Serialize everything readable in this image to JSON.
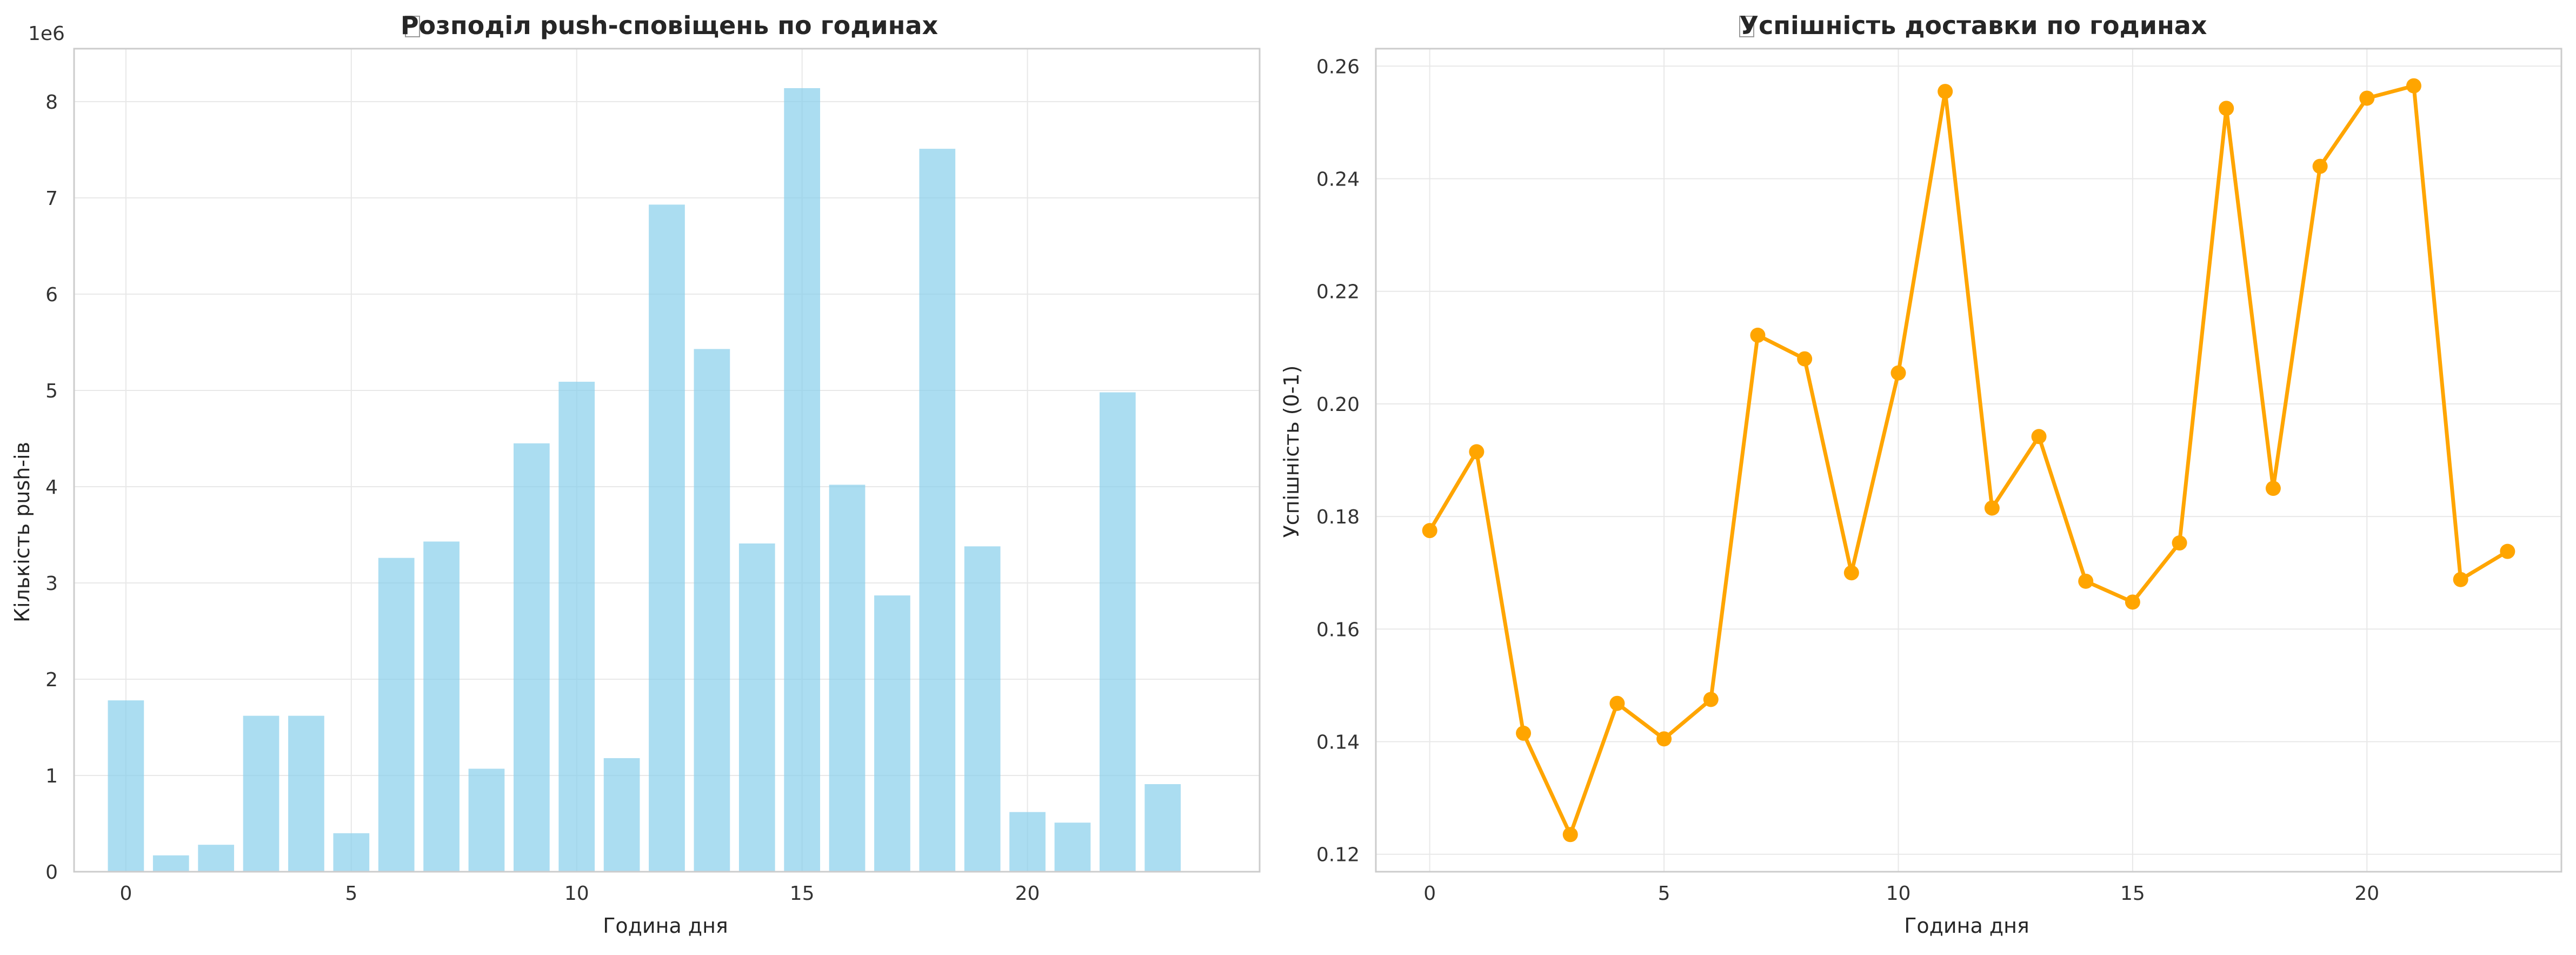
{
  "chart_data": [
    {
      "type": "bar",
      "title": "Розподіл push-сповіщень по годинах",
      "xlabel": "Година дня",
      "ylabel": "Кількість push-ів",
      "y_offset_label": "1e6",
      "x": [
        0,
        1,
        2,
        3,
        4,
        5,
        6,
        7,
        8,
        9,
        10,
        11,
        12,
        13,
        14,
        15,
        16,
        17,
        18,
        19,
        20,
        21,
        22,
        23
      ],
      "values": [
        1.78,
        0.17,
        0.28,
        1.62,
        1.62,
        0.4,
        3.26,
        3.43,
        1.07,
        4.45,
        5.09,
        1.18,
        6.93,
        5.43,
        3.41,
        8.14,
        4.02,
        2.87,
        7.51,
        3.38,
        0.62,
        0.51,
        4.98,
        0.91
      ],
      "xlim": [
        -1.15,
        25.15
      ],
      "ylim": [
        0,
        8.55
      ],
      "xticks": [
        0,
        5,
        10,
        15,
        20
      ],
      "yticks": [
        0,
        1,
        2,
        3,
        4,
        5,
        6,
        7,
        8
      ],
      "color": "#87ceeb",
      "grid": true
    },
    {
      "type": "line",
      "title": "Успішність доставки по годинах",
      "xlabel": "Година дня",
      "ylabel": "Успішність (0-1)",
      "x": [
        0,
        1,
        2,
        3,
        4,
        5,
        6,
        7,
        8,
        9,
        10,
        11,
        12,
        13,
        14,
        15,
        16,
        17,
        18,
        19,
        20,
        21,
        22,
        23
      ],
      "values": [
        0.1775,
        0.1915,
        0.1415,
        0.1235,
        0.1468,
        0.1405,
        0.1475,
        0.2122,
        0.208,
        0.17,
        0.2055,
        0.2555,
        0.1815,
        0.1942,
        0.1685,
        0.1648,
        0.1753,
        0.2525,
        0.185,
        0.2422,
        0.2543,
        0.2565,
        0.1688,
        0.1738
      ],
      "xlim": [
        -1.15,
        24.15
      ],
      "ylim": [
        0.1169,
        0.2631
      ],
      "xticks": [
        0,
        5,
        10,
        15,
        20
      ],
      "yticks": [
        0.12,
        0.14,
        0.16,
        0.18,
        0.2,
        0.22,
        0.24,
        0.26
      ],
      "ytick_labels": [
        "0.12",
        "0.14",
        "0.16",
        "0.18",
        "0.20",
        "0.22",
        "0.24",
        "0.26"
      ],
      "color": "#ffa500",
      "grid": true
    }
  ]
}
